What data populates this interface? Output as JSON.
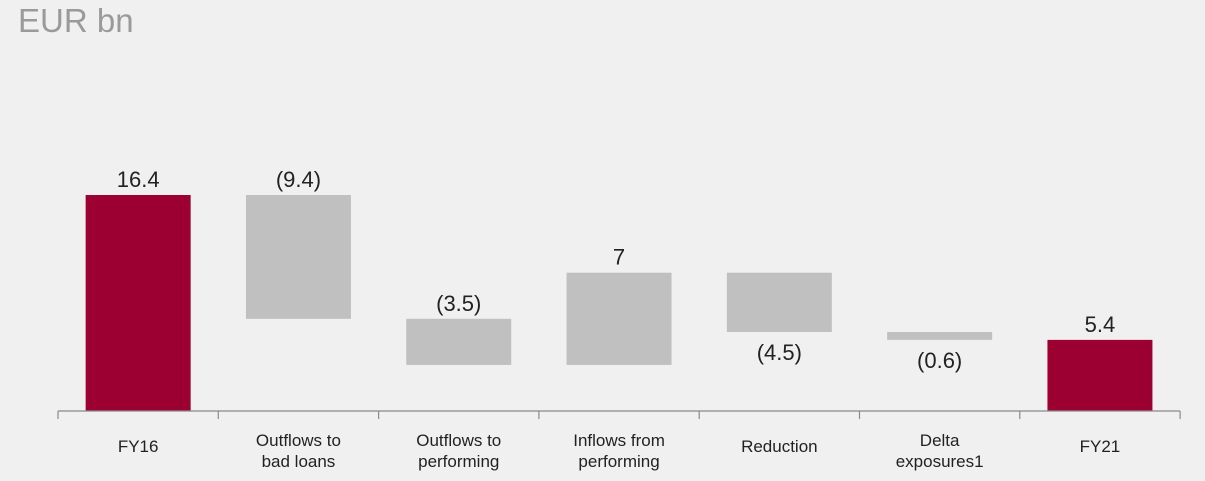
{
  "chart_data": {
    "type": "bar",
    "unit_label": "EUR bn",
    "categories": [
      [
        "FY16"
      ],
      [
        "Outflows to",
        "bad loans"
      ],
      [
        "Outflows to",
        "performing"
      ],
      [
        "Inflows from",
        "performing"
      ],
      [
        "Reduction"
      ],
      [
        "Delta",
        "exposures1"
      ],
      [
        "FY21"
      ]
    ],
    "bars": [
      {
        "kind": "total",
        "start": 0,
        "end": 16.4,
        "label": "16.4"
      },
      {
        "kind": "delta",
        "start": 16.4,
        "end": 7.0,
        "label": "(9.4)"
      },
      {
        "kind": "delta",
        "start": 7.0,
        "end": 3.5,
        "label": "(3.5)"
      },
      {
        "kind": "delta",
        "start": 3.5,
        "end": 10.5,
        "label": "7"
      },
      {
        "kind": "delta",
        "start": 10.5,
        "end": 6.0,
        "label": "(4.5)"
      },
      {
        "kind": "delta",
        "start": 6.0,
        "end": 5.4,
        "label": "(0.6)"
      },
      {
        "kind": "total",
        "start": 0,
        "end": 5.4,
        "label": "5.4"
      }
    ],
    "ylim": [
      0,
      16.4
    ],
    "colors": {
      "total": "#9c0033",
      "delta": "#c0c0c0"
    },
    "grid": false,
    "legend": "none"
  }
}
